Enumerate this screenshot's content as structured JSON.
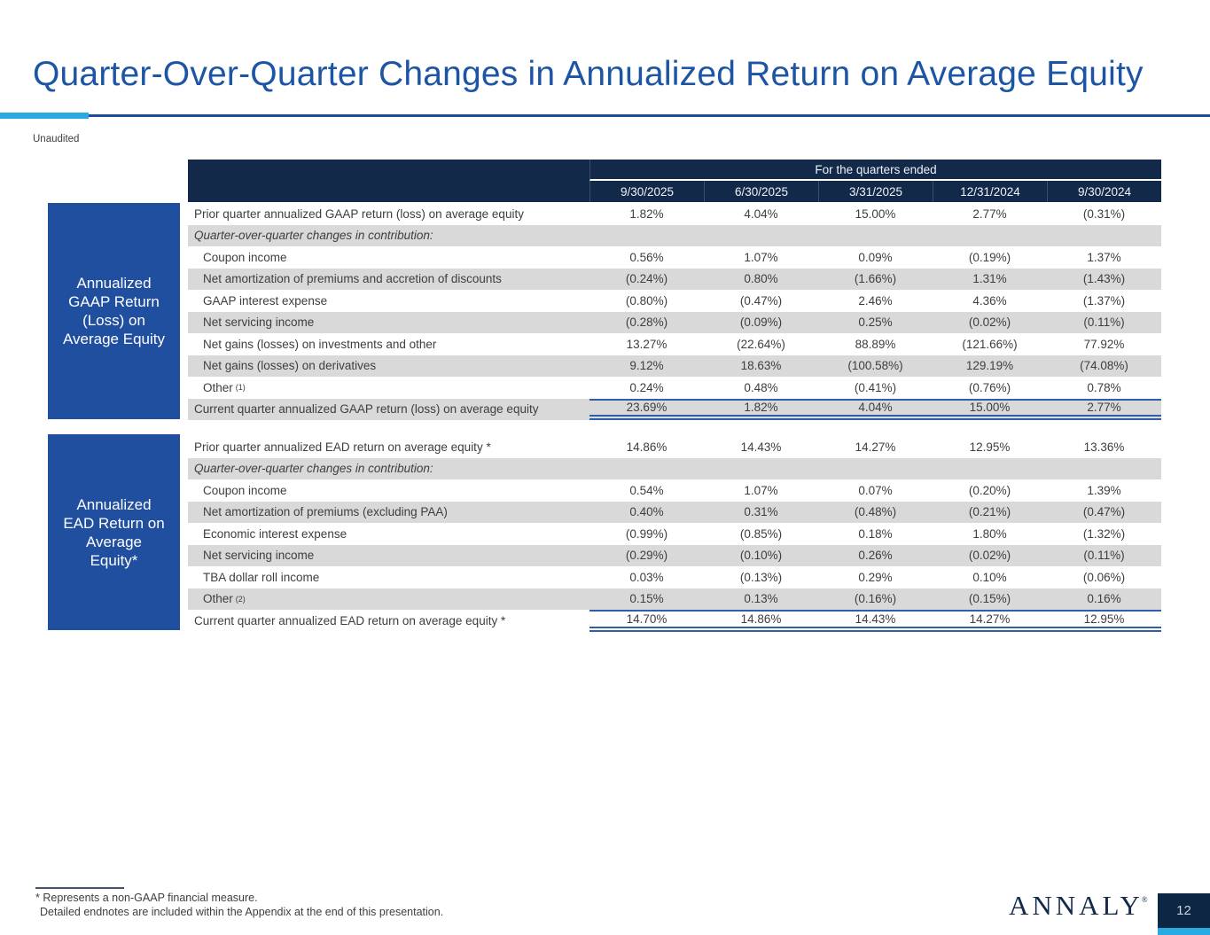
{
  "title": "Quarter-Over-Quarter Changes in Annualized Return on Average Equity",
  "subtitle": "Unaudited",
  "colors": {
    "title_blue": "#1d55a5",
    "rule_navy": "#1c4c9c",
    "accent_cyan": "#29abe2",
    "header_navy": "#12294a",
    "sidebox_blue": "#1f4f9e",
    "row_stripe_gray": "#d9d9d9",
    "total_rule_blue": "#2e5fa8",
    "body_text": "#3e3e3e"
  },
  "table_header": {
    "span_label": "For the quarters ended",
    "columns": [
      "9/30/2025",
      "6/30/2025",
      "3/31/2025",
      "12/31/2024",
      "9/30/2024"
    ]
  },
  "sections": [
    {
      "side_label_lines": [
        "Annualized",
        "GAAP Return",
        "(Loss) on",
        "Average Equity"
      ],
      "rows": [
        {
          "label": "Prior quarter annualized GAAP return (loss) on average equity",
          "shade": false,
          "values": [
            "1.82%",
            "4.04%",
            "15.00%",
            "2.77%",
            "(0.31%)"
          ]
        },
        {
          "label": "Quarter-over-quarter changes in contribution:",
          "italic": true,
          "shade": true,
          "values": [
            "",
            "",
            "",
            "",
            ""
          ]
        },
        {
          "label": "Coupon income",
          "indent": true,
          "shade": false,
          "values": [
            "0.56%",
            "1.07%",
            "0.09%",
            "(0.19%)",
            "1.37%"
          ]
        },
        {
          "label": "Net amortization of premiums and accretion of discounts",
          "indent": true,
          "shade": true,
          "values": [
            "(0.24%)",
            "0.80%",
            "(1.66%)",
            "1.31%",
            "(1.43%)"
          ]
        },
        {
          "label": "GAAP interest expense",
          "indent": true,
          "shade": false,
          "values": [
            "(0.80%)",
            "(0.47%)",
            "2.46%",
            "4.36%",
            "(1.37%)"
          ]
        },
        {
          "label": "Net servicing income",
          "indent": true,
          "shade": true,
          "values": [
            "(0.28%)",
            "(0.09%)",
            "0.25%",
            "(0.02%)",
            "(0.11%)"
          ]
        },
        {
          "label": "Net gains (losses) on investments and other",
          "indent": true,
          "shade": false,
          "values": [
            "13.27%",
            "(22.64%)",
            "88.89%",
            "(121.66%)",
            "77.92%"
          ]
        },
        {
          "label": "Net gains (losses) on derivatives",
          "indent": true,
          "shade": true,
          "values": [
            "9.12%",
            "18.63%",
            "(100.58%)",
            "129.19%",
            "(74.08%)"
          ]
        },
        {
          "label": "Other",
          "sup": "(1)",
          "indent": true,
          "shade": false,
          "values": [
            "0.24%",
            "0.48%",
            "(0.41%)",
            "(0.76%)",
            "0.78%"
          ]
        },
        {
          "label": "Current quarter annualized GAAP return (loss) on average equity",
          "shade": true,
          "total": true,
          "values": [
            "23.69%",
            "1.82%",
            "4.04%",
            "15.00%",
            "2.77%"
          ]
        }
      ]
    },
    {
      "side_label_lines": [
        "Annualized",
        "EAD Return on",
        "Average",
        "Equity*"
      ],
      "rows": [
        {
          "label": "Prior quarter annualized EAD return on average equity *",
          "shade": false,
          "values": [
            "14.86%",
            "14.43%",
            "14.27%",
            "12.95%",
            "13.36%"
          ]
        },
        {
          "label": "Quarter-over-quarter changes in contribution:",
          "italic": true,
          "shade": true,
          "values": [
            "",
            "",
            "",
            "",
            ""
          ]
        },
        {
          "label": "Coupon income",
          "indent": true,
          "shade": false,
          "values": [
            "0.54%",
            "1.07%",
            "0.07%",
            "(0.20%)",
            "1.39%"
          ]
        },
        {
          "label": "Net amortization of premiums (excluding PAA)",
          "indent": true,
          "shade": true,
          "values": [
            "0.40%",
            "0.31%",
            "(0.48%)",
            "(0.21%)",
            "(0.47%)"
          ]
        },
        {
          "label": "Economic interest expense",
          "indent": true,
          "shade": false,
          "values": [
            "(0.99%)",
            "(0.85%)",
            "0.18%",
            "1.80%",
            "(1.32%)"
          ]
        },
        {
          "label": "Net servicing income",
          "indent": true,
          "shade": true,
          "values": [
            "(0.29%)",
            "(0.10%)",
            "0.26%",
            "(0.02%)",
            "(0.11%)"
          ]
        },
        {
          "label": "TBA dollar roll income",
          "indent": true,
          "shade": false,
          "values": [
            "0.03%",
            "(0.13%)",
            "0.29%",
            "0.10%",
            "(0.06%)"
          ]
        },
        {
          "label": "Other",
          "sup": "(2)",
          "indent": true,
          "shade": true,
          "values": [
            "0.15%",
            "0.13%",
            "(0.16%)",
            "(0.15%)",
            "0.16%"
          ]
        },
        {
          "label": "Current quarter annualized EAD return on average equity *",
          "shade": false,
          "total": true,
          "values": [
            "14.70%",
            "14.86%",
            "14.43%",
            "14.27%",
            "12.95%"
          ]
        }
      ]
    }
  ],
  "footnotes": {
    "line1": "* Represents a non-GAAP financial measure.",
    "line2": "Detailed endnotes are included within the Appendix at the end of this presentation."
  },
  "logo_text": "ANNALY",
  "logo_reg": "®",
  "page_number": "12"
}
